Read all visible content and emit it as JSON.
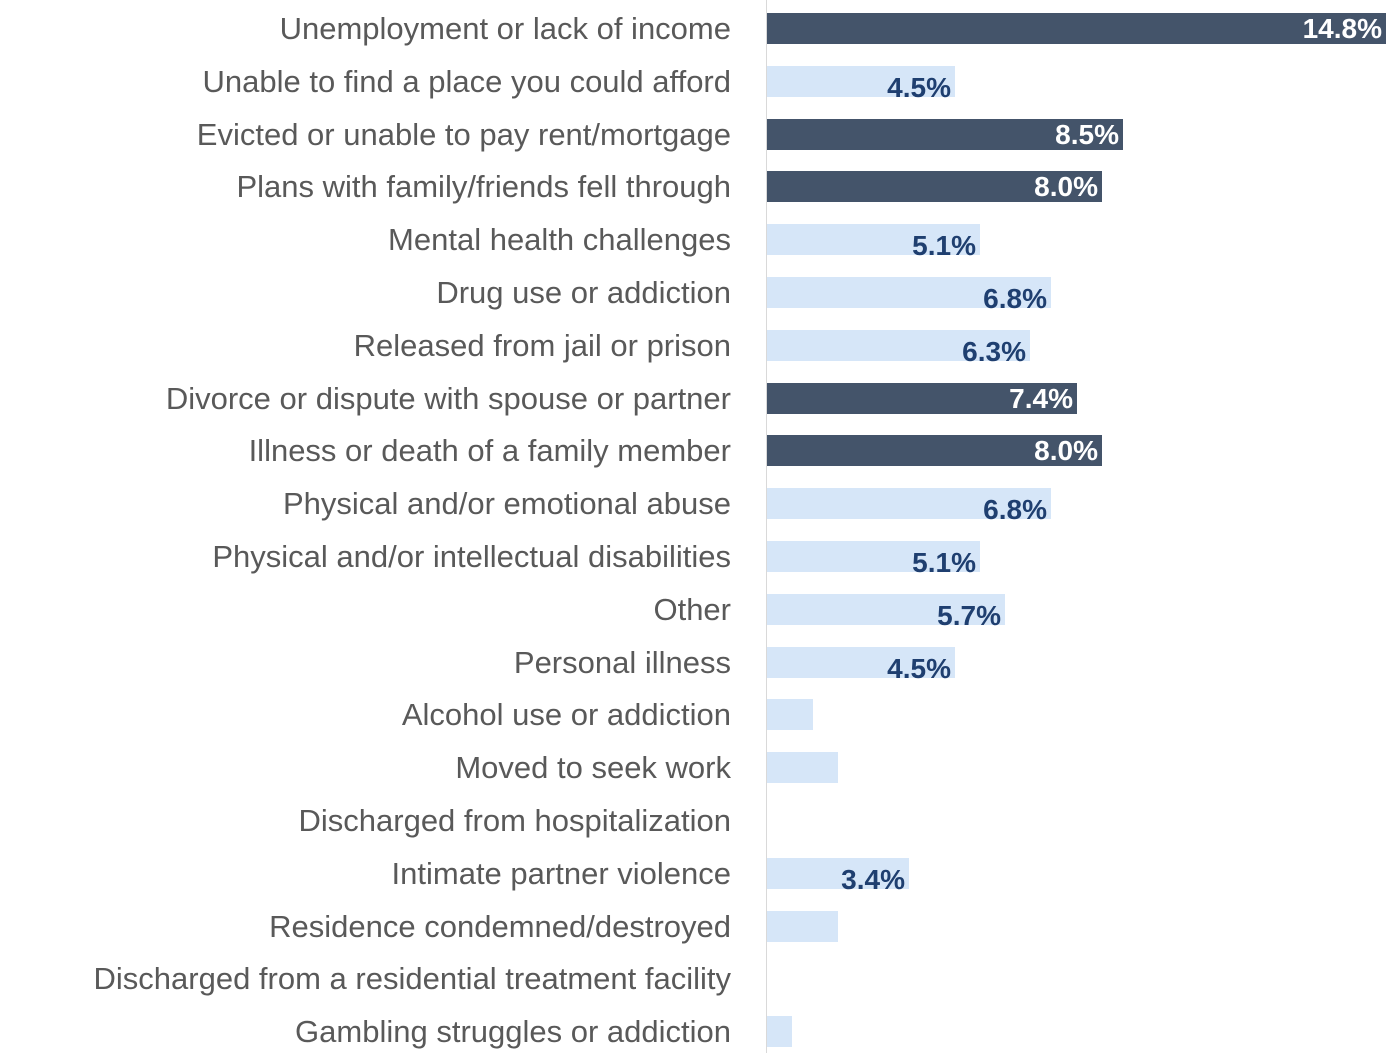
{
  "chart_data": {
    "type": "bar",
    "orientation": "horizontal",
    "title": "",
    "xlabel": "",
    "ylabel": "",
    "xlim": [
      0,
      14.8
    ],
    "grid": false,
    "legend": "none",
    "colors": {
      "highlight": "#44546a",
      "normal": "#d6e6f8",
      "label_on_highlight": "#ffffff",
      "label_on_normal": "#1f3f70",
      "category_text": "#595959",
      "axis": "#d9d9d9"
    },
    "categories": [
      "Unemployment or lack of income",
      "Unable to find a place you could afford",
      "Evicted or unable to pay rent/mortgage",
      "Plans with family/friends fell through",
      "Mental health challenges",
      "Drug use or addiction",
      "Released from jail or prison",
      "Divorce or dispute with spouse or partner",
      "Illness or death of a family member",
      "Physical and/or emotional abuse",
      "Physical and/or intellectual disabilities",
      "Other",
      "Personal illness",
      "Alcohol use or addiction",
      "Moved to seek work",
      "Discharged from hospitalization",
      "Intimate partner violence",
      "Residence condemned/destroyed",
      "Discharged from a residential treatment facility",
      "Gambling struggles or addiction"
    ],
    "values": [
      14.8,
      4.5,
      8.5,
      8.0,
      5.1,
      6.8,
      6.3,
      7.4,
      8.0,
      6.8,
      5.1,
      5.7,
      4.5,
      1.1,
      1.7,
      0,
      3.4,
      1.7,
      0,
      0.6
    ],
    "data_labels": [
      "14.8%",
      "4.5%",
      "8.5%",
      "8.0%",
      "5.1%",
      "6.8%",
      "6.3%",
      "7.4%",
      "8.0%",
      "6.8%",
      "5.1%",
      "5.7%",
      "4.5%",
      "",
      "",
      "",
      "3.4%",
      "",
      "",
      ""
    ],
    "highlighted": [
      true,
      false,
      true,
      true,
      false,
      false,
      false,
      true,
      true,
      false,
      false,
      false,
      false,
      false,
      false,
      false,
      false,
      false,
      false,
      false
    ]
  }
}
